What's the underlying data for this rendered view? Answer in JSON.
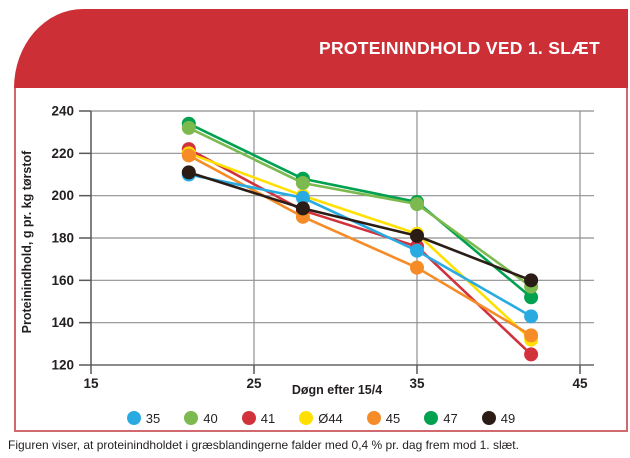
{
  "banner": {
    "title": "PROTEININDHOLD VED 1. SLÆT",
    "bg_color": "#cd2f37"
  },
  "caption": "Figuren viser, at proteinindholdet i græsblandingerne falder med 0,4 % pr. dag frem mod 1. slæt.",
  "chart_data": {
    "type": "line",
    "title": "PROTEININDHOLD VED 1. SLÆT",
    "xlabel": "Døgn efter 15/4",
    "ylabel": "Proteinindhold, g pr. kg tørstof",
    "x": [
      21,
      28,
      35,
      42
    ],
    "x_ticks": [
      15,
      25,
      35,
      45
    ],
    "y_ticks": [
      120,
      140,
      160,
      180,
      200,
      220,
      240
    ],
    "xlim": [
      15,
      45
    ],
    "ylim": [
      120,
      240
    ],
    "grid": true,
    "legend_position": "bottom",
    "series": [
      {
        "name": "35",
        "color": "#29abe2",
        "values": [
          210,
          199,
          174,
          143
        ]
      },
      {
        "name": "40",
        "color": "#7cb94e",
        "values": [
          232,
          206,
          196,
          157
        ]
      },
      {
        "name": "41",
        "color": "#d2323c",
        "values": [
          222,
          193,
          176,
          125
        ]
      },
      {
        "name": "Ø44",
        "color": "#ffe000",
        "values": [
          220,
          200,
          182,
          132
        ]
      },
      {
        "name": "45",
        "color": "#f68c28",
        "values": [
          219,
          190,
          166,
          134
        ]
      },
      {
        "name": "47",
        "color": "#00a14f",
        "values": [
          234,
          208,
          197,
          152
        ]
      },
      {
        "name": "49",
        "color": "#2b1d16",
        "values": [
          211,
          194,
          181,
          160
        ]
      }
    ],
    "draw_order": [
      "41",
      "Ø44",
      "45",
      "35",
      "47",
      "40",
      "49"
    ]
  }
}
